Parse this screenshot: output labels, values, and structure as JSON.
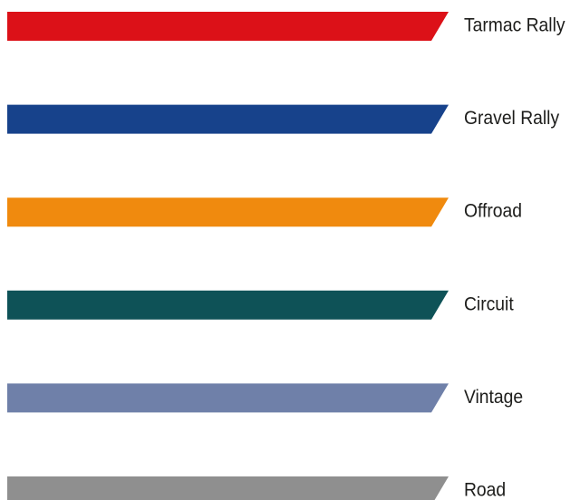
{
  "legend": {
    "items": [
      {
        "label": "Tarmac Rally",
        "color": "#dc1118"
      },
      {
        "label": "Gravel Rally",
        "color": "#17428b"
      },
      {
        "label": "Offroad",
        "color": "#f08a0e"
      },
      {
        "label": "Circuit",
        "color": "#0e5257"
      },
      {
        "label": "Vintage",
        "color": "#6f80a9"
      },
      {
        "label": "Road",
        "color": "#8f8f8f"
      }
    ]
  }
}
